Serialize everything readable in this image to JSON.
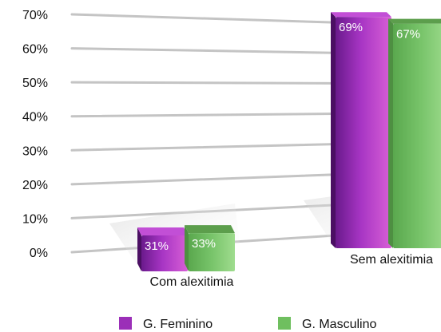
{
  "chart_data": {
    "type": "bar",
    "categories": [
      "Com alexitimia",
      "Sem alexitimia"
    ],
    "series": [
      {
        "name": "G. Feminino",
        "values": [
          31,
          69
        ],
        "value_labels": [
          "31%",
          "69%"
        ],
        "color": "#9b2fb8"
      },
      {
        "name": "G. Masculino",
        "values": [
          33,
          67
        ],
        "value_labels": [
          "33%",
          "67%"
        ],
        "color": "#6fbf5f"
      }
    ],
    "ylim": [
      0,
      70
    ],
    "yticks": [
      "0%",
      "10%",
      "20%",
      "30%",
      "40%",
      "50%",
      "60%",
      "70%"
    ],
    "grid": true,
    "legend_position": "bottom",
    "style": "3d perspective bars",
    "title": "",
    "xlabel": "",
    "ylabel": ""
  }
}
